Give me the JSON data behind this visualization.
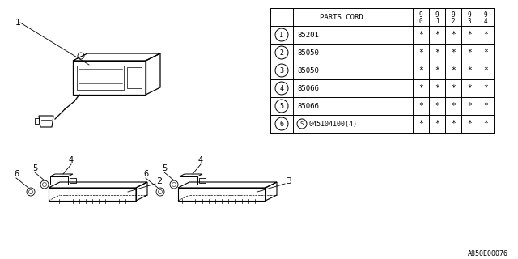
{
  "bg_color": "#ffffff",
  "table": {
    "header_label": "PARTS CORD",
    "year_cols": [
      "9\n0",
      "9\n1",
      "9\n2",
      "9\n3",
      "9\n4"
    ],
    "rows": [
      {
        "num": "1",
        "code": "85201"
      },
      {
        "num": "2",
        "code": "85050"
      },
      {
        "num": "3",
        "code": "85050"
      },
      {
        "num": "4",
        "code": "85066"
      },
      {
        "num": "5",
        "code": "85066"
      },
      {
        "num": "6",
        "code": "045104100(4)",
        "circled_prefix": "S"
      }
    ],
    "star": "*"
  },
  "footnote": "A850E00076"
}
